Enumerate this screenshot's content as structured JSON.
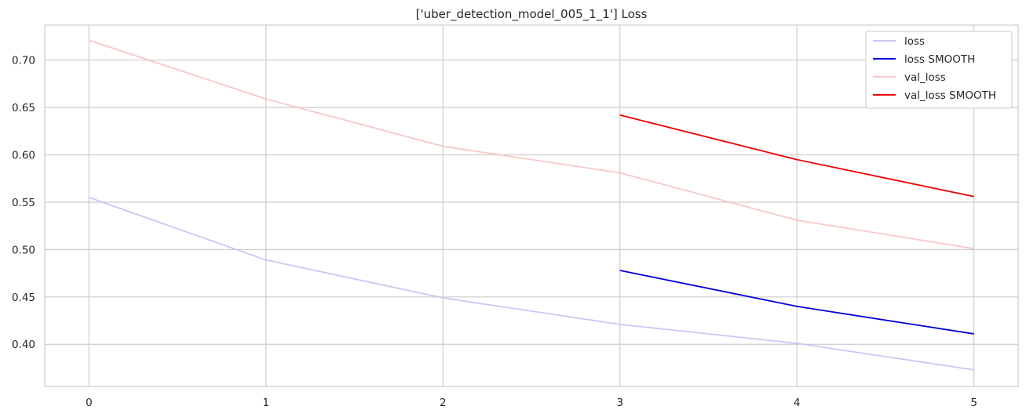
{
  "chart_data": {
    "type": "line",
    "title": "['uber_detection_model_005_1_1'] Loss",
    "xlabel": "",
    "ylabel": "",
    "x_ticks": [
      0,
      1,
      2,
      3,
      4,
      5
    ],
    "y_ticks": [
      0.4,
      0.45,
      0.5,
      0.55,
      0.6,
      0.65,
      0.7
    ],
    "y_tick_labels": [
      "0.40",
      "0.45",
      "0.50",
      "0.55",
      "0.60",
      "0.65",
      "0.70"
    ],
    "xlim": [
      -0.25,
      5.25
    ],
    "ylim": [
      0.3555,
      0.737
    ],
    "grid": true,
    "legend_position": "top-right",
    "series": [
      {
        "name": "loss",
        "color": "#c8c8f5",
        "x": [
          0,
          1,
          2,
          3,
          4,
          5
        ],
        "values": [
          0.555,
          0.489,
          0.449,
          0.421,
          0.401,
          0.373
        ]
      },
      {
        "name": "loss SMOOTH",
        "color": "#0000dd",
        "x": [
          3,
          4,
          5
        ],
        "values": [
          0.478,
          0.44,
          0.411
        ]
      },
      {
        "name": "val_loss",
        "color": "#f8c8c8",
        "x": [
          0,
          1,
          2,
          3,
          4,
          5
        ],
        "values": [
          0.721,
          0.659,
          0.609,
          0.581,
          0.531,
          0.501
        ]
      },
      {
        "name": "val_loss SMOOTH",
        "color": "#ee0000",
        "x": [
          3,
          4,
          5
        ],
        "values": [
          0.642,
          0.595,
          0.556
        ]
      }
    ]
  }
}
